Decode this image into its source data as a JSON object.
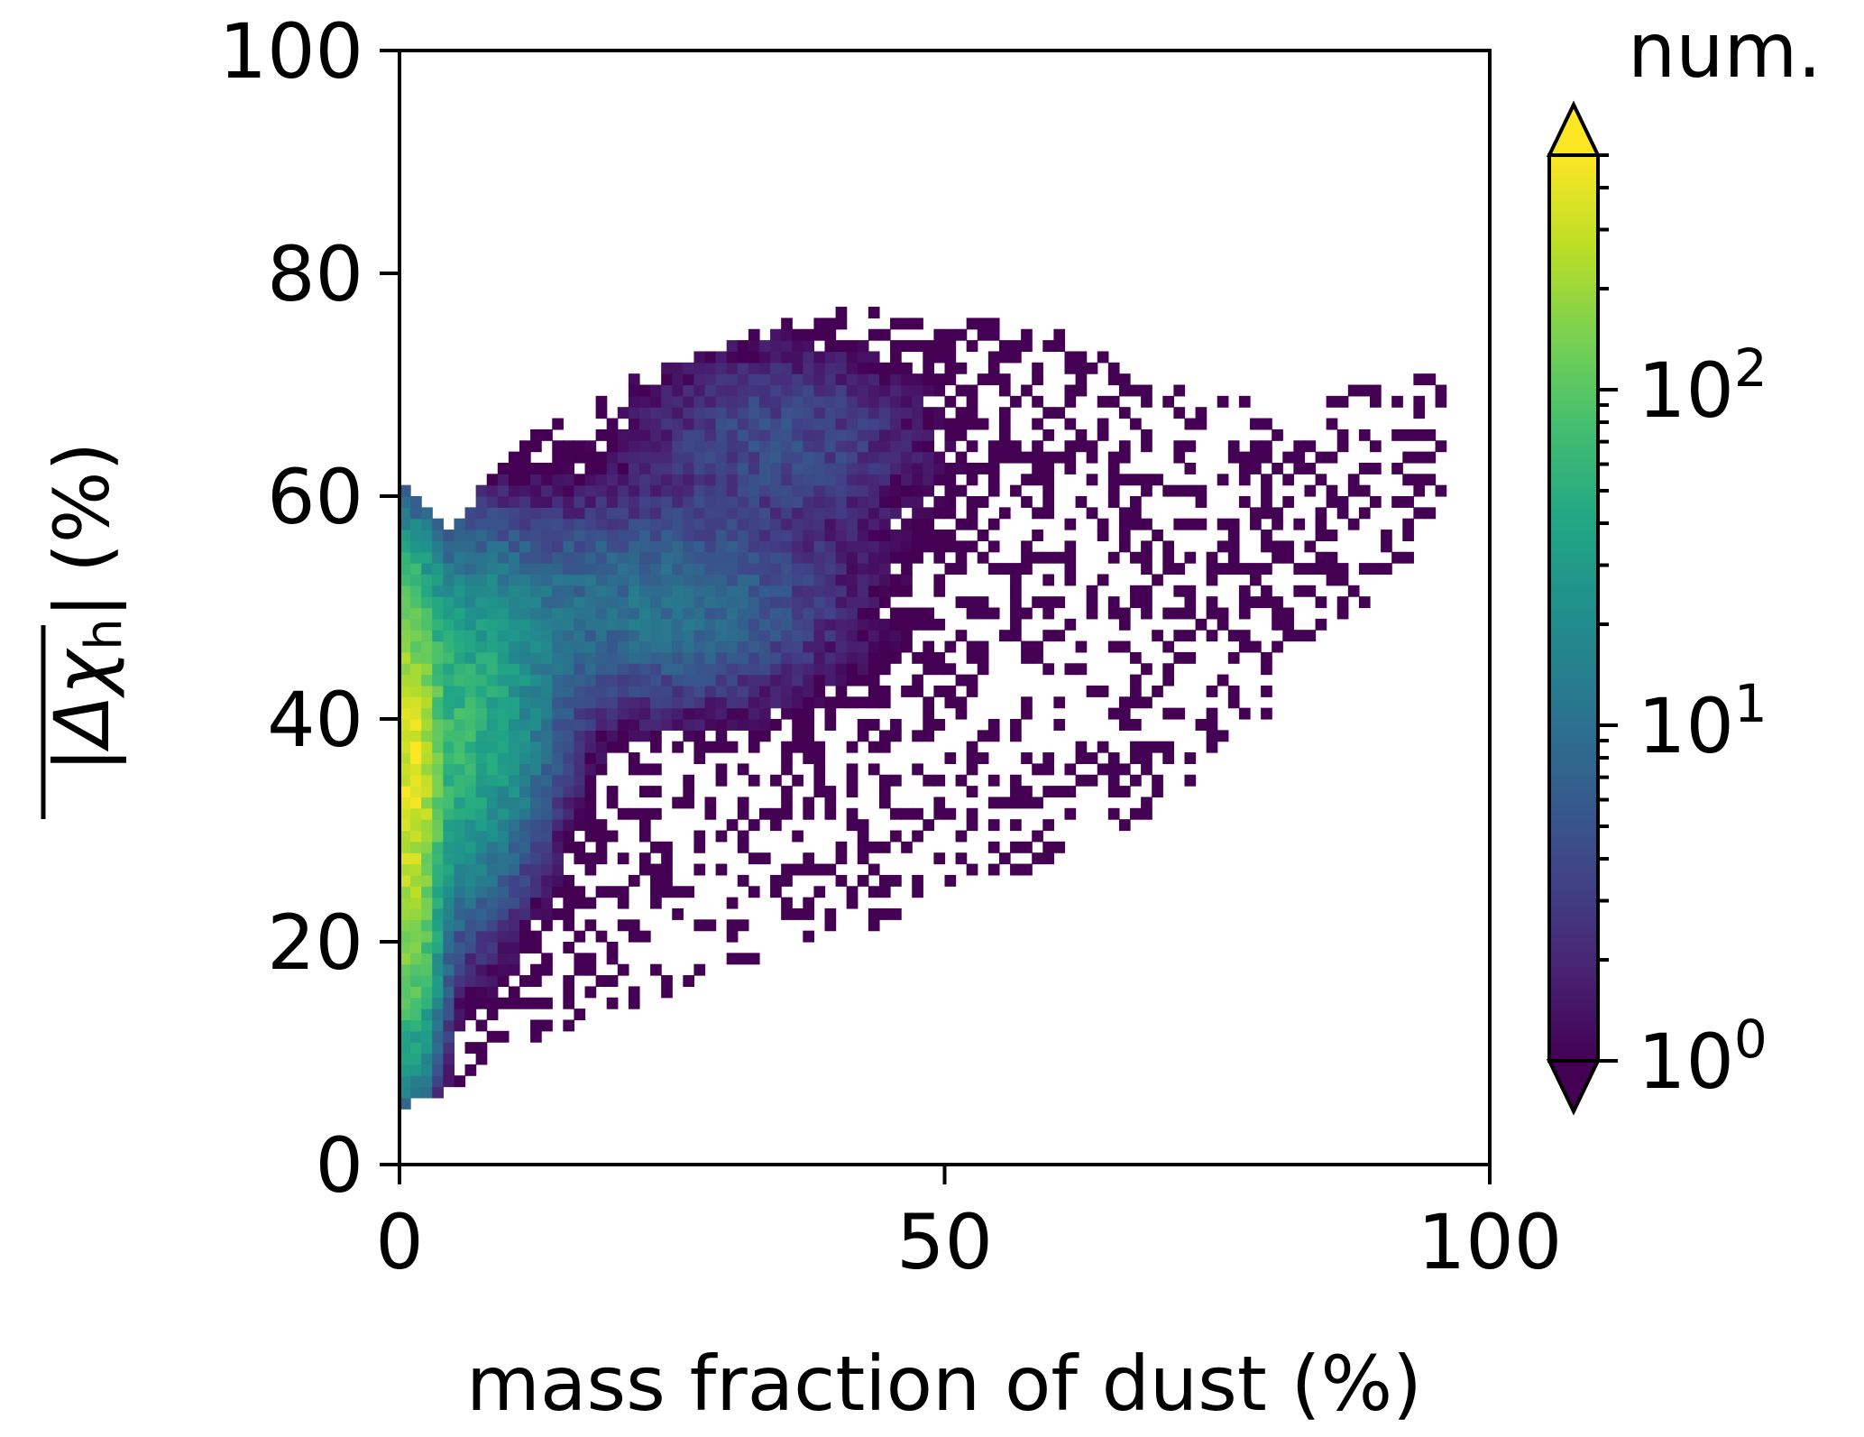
{
  "chart_data": {
    "type": "heatmap",
    "title": "",
    "xlabel": "mass fraction of dust (%)",
    "ylabel": "|Δχh| (%)",
    "ylabel_parts": {
      "symbol": "Δχ",
      "subscript": "h",
      "unit": "(%)"
    },
    "xlim": [
      0,
      100
    ],
    "ylim": [
      0,
      100
    ],
    "xticks": [
      "0",
      "50",
      "100"
    ],
    "yticks": [
      "0",
      "20",
      "40",
      "60",
      "80",
      "100"
    ],
    "colorbar": {
      "title": "num.",
      "scale": "log",
      "colormap": "viridis",
      "range": [
        1,
        500
      ],
      "ticks": [
        {
          "value": 1,
          "base": "10",
          "exp": "0"
        },
        {
          "value": 10,
          "base": "10",
          "exp": "1"
        },
        {
          "value": 100,
          "base": "10",
          "exp": "2"
        }
      ],
      "extend": "both"
    },
    "bin_size": {
      "x": 1,
      "y": 1
    },
    "density_model": {
      "description": "approximate count density per 1%x1% bin, read from color",
      "core": [
        {
          "x": 0.8,
          "y": 35,
          "count": 400,
          "sx": 1.5,
          "sy": 6
        },
        {
          "x": 0.8,
          "y": 22,
          "count": 150,
          "sx": 1.5,
          "sy": 7
        },
        {
          "x": 0.8,
          "y": 48,
          "count": 90,
          "sx": 1.5,
          "sy": 5
        },
        {
          "x": 5,
          "y": 38,
          "count": 45,
          "sx": 3.5,
          "sy": 8
        },
        {
          "x": 8,
          "y": 42,
          "count": 20,
          "sx": 4,
          "sy": 7
        },
        {
          "x": 22,
          "y": 50,
          "count": 10,
          "sx": 10,
          "sy": 5
        },
        {
          "x": 35,
          "y": 65,
          "count": 4,
          "sx": 8,
          "sy": 5
        }
      ],
      "envelope": {
        "x_points": [
          0,
          5,
          10,
          20,
          30,
          40,
          50,
          60,
          70,
          80,
          90,
          96
        ],
        "y_lower": [
          5,
          7,
          10,
          14,
          17,
          20,
          24,
          26,
          32,
          40,
          52,
          58
        ],
        "y_upper": [
          61,
          57,
          64,
          70,
          74,
          77,
          76,
          75,
          70,
          68,
          70,
          71
        ]
      }
    }
  }
}
